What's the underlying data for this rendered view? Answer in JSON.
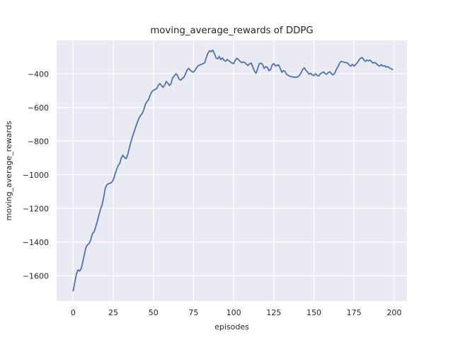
{
  "chart_data": {
    "type": "line",
    "title": "moving_average_rewards of DDPG",
    "xlabel": "episodes",
    "ylabel": "moving_average_rewards",
    "xticks": [
      0,
      25,
      50,
      75,
      100,
      125,
      150,
      175,
      200
    ],
    "yticks": [
      -400,
      -600,
      -800,
      -1000,
      -1200,
      -1400,
      -1600
    ],
    "xlim": [
      -10.3,
      208.0
    ],
    "ylim": [
      -1750,
      -202
    ],
    "grid": true,
    "legend_position": "none",
    "line_color": "#4C72B0",
    "axes_background": "#EAEAF2",
    "grid_color": "#FFFFFF",
    "text_color": "#262626",
    "figure_background": "#FFFFFF",
    "x": [
      0,
      1,
      2,
      3,
      4,
      5,
      6,
      7,
      8,
      9,
      10,
      11,
      12,
      13,
      14,
      15,
      16,
      17,
      18,
      19,
      20,
      21,
      22,
      23,
      24,
      25,
      26,
      27,
      28,
      29,
      30,
      31,
      32,
      33,
      34,
      35,
      36,
      37,
      38,
      39,
      40,
      41,
      42,
      43,
      44,
      45,
      46,
      47,
      48,
      49,
      50,
      51,
      52,
      53,
      54,
      55,
      56,
      57,
      58,
      59,
      60,
      61,
      62,
      63,
      64,
      65,
      66,
      67,
      68,
      69,
      70,
      71,
      72,
      73,
      74,
      75,
      76,
      77,
      78,
      79,
      80,
      81,
      82,
      83,
      84,
      85,
      86,
      87,
      88,
      89,
      90,
      91,
      92,
      93,
      94,
      95,
      96,
      97,
      98,
      99,
      100,
      101,
      102,
      103,
      104,
      105,
      106,
      107,
      108,
      109,
      110,
      111,
      112,
      113,
      114,
      115,
      116,
      117,
      118,
      119,
      120,
      121,
      122,
      123,
      124,
      125,
      126,
      127,
      128,
      129,
      130,
      131,
      132,
      133,
      134,
      135,
      136,
      137,
      138,
      139,
      140,
      141,
      142,
      143,
      144,
      145,
      146,
      147,
      148,
      149,
      150,
      151,
      152,
      153,
      154,
      155,
      156,
      157,
      158,
      159,
      160,
      161,
      162,
      163,
      164,
      165,
      166,
      167,
      168,
      169,
      170,
      171,
      172,
      173,
      174,
      175,
      176,
      177,
      178,
      179,
      180,
      181,
      182,
      183,
      184,
      185,
      186,
      187,
      188,
      189,
      190,
      191,
      192,
      193,
      194,
      195,
      196,
      197,
      198,
      199
    ],
    "y": [
      -1690,
      -1640,
      -1590,
      -1565,
      -1572,
      -1558,
      -1516,
      -1474,
      -1430,
      -1415,
      -1408,
      -1385,
      -1350,
      -1340,
      -1312,
      -1277,
      -1242,
      -1207,
      -1179,
      -1137,
      -1080,
      -1060,
      -1053,
      -1050,
      -1045,
      -1031,
      -1000,
      -970,
      -947,
      -933,
      -900,
      -884,
      -897,
      -905,
      -880,
      -840,
      -805,
      -772,
      -744,
      -715,
      -688,
      -665,
      -648,
      -636,
      -615,
      -582,
      -565,
      -554,
      -526,
      -508,
      -498,
      -494,
      -488,
      -470,
      -458,
      -470,
      -481,
      -468,
      -446,
      -456,
      -470,
      -458,
      -424,
      -414,
      -400,
      -410,
      -432,
      -438,
      -428,
      -421,
      -400,
      -379,
      -368,
      -379,
      -388,
      -390,
      -379,
      -362,
      -352,
      -348,
      -344,
      -340,
      -334,
      -302,
      -278,
      -264,
      -269,
      -260,
      -280,
      -306,
      -312,
      -298,
      -316,
      -306,
      -320,
      -326,
      -315,
      -323,
      -330,
      -337,
      -340,
      -320,
      -308,
      -316,
      -326,
      -334,
      -330,
      -334,
      -344,
      -351,
      -340,
      -337,
      -362,
      -386,
      -397,
      -368,
      -340,
      -337,
      -345,
      -368,
      -358,
      -362,
      -382,
      -376,
      -348,
      -340,
      -354,
      -351,
      -347,
      -368,
      -391,
      -382,
      -386,
      -404,
      -410,
      -415,
      -418,
      -419,
      -420,
      -421,
      -418,
      -410,
      -395,
      -375,
      -365,
      -380,
      -390,
      -403,
      -397,
      -408,
      -411,
      -400,
      -410,
      -414,
      -400,
      -395,
      -389,
      -400,
      -403,
      -392,
      -389,
      -400,
      -407,
      -396,
      -375,
      -358,
      -337,
      -327,
      -330,
      -332,
      -334,
      -337,
      -348,
      -355,
      -344,
      -355,
      -346,
      -335,
      -320,
      -308,
      -304,
      -316,
      -327,
      -319,
      -324,
      -319,
      -330,
      -337,
      -333,
      -341,
      -350,
      -355,
      -346,
      -355,
      -352,
      -361,
      -358,
      -365,
      -370,
      -375
    ]
  }
}
